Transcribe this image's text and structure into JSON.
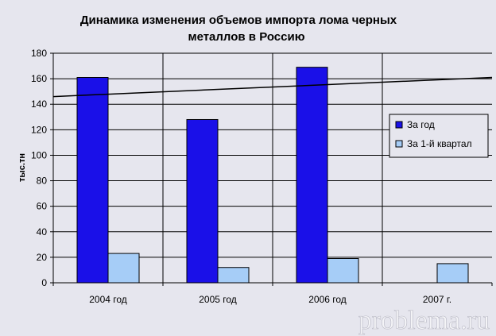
{
  "chart_data": {
    "type": "bar",
    "title": "Динамика изменения объемов импорта лома черных металлов в Россию",
    "title_lines": [
      "Динамика изменения объемов импорта лома черных",
      "металлов в Россию"
    ],
    "ylabel": "тыс.тн",
    "xlabel": "",
    "categories": [
      "2004 год",
      "2005 год",
      "2006 год",
      "2007 г."
    ],
    "series": [
      {
        "name": "За год",
        "values": [
          161,
          128,
          169,
          null
        ],
        "color": "#1a10e8"
      },
      {
        "name": "За 1-й квартал",
        "values": [
          23,
          12,
          19,
          15
        ],
        "color": "#a6cdf7"
      }
    ],
    "trendline": {
      "series": "За год",
      "start": 146,
      "end": 161,
      "color": "#000000"
    },
    "ylim": [
      0,
      180
    ],
    "yticks": [
      0,
      20,
      40,
      60,
      80,
      100,
      120,
      140,
      160,
      180
    ],
    "grid": true,
    "legend_position": "right"
  },
  "watermark": "problema.ru"
}
